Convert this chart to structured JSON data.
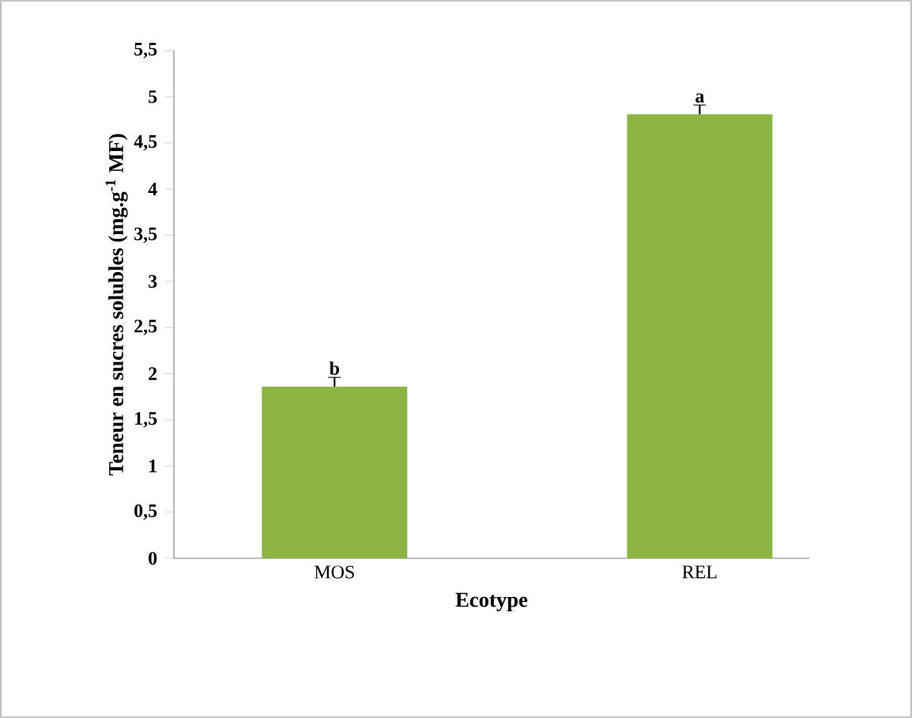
{
  "chart_data": {
    "type": "bar",
    "xlabel": "Ecotype",
    "ylabel": "Teneur en sucres solubles (mg.g$^{-1}$ MF)",
    "categories": [
      "MOS",
      "REL"
    ],
    "values": [
      1.86,
      4.81
    ],
    "errors": [
      0.1,
      0.1
    ],
    "color": "#8cb445",
    "ylim": [
      0,
      5.5
    ],
    "yticks": [
      0,
      {
        "value": 0.5,
        "label": "0,5"
      },
      1,
      {
        "value": 1.5,
        "label": "1,5"
      },
      2,
      {
        "value": 2.5,
        "label": "2,5"
      },
      3,
      {
        "value": 3.5,
        "label": "3,5"
      },
      4,
      {
        "value": 4.5,
        "label": "4,5"
      },
      5,
      {
        "value": 5.5,
        "label": "5,5"
      }
    ],
    "annotations": [
      {
        "text": "b",
        "x": "MOS",
        "y": 1.96
      },
      {
        "text": "a",
        "x": "REL",
        "y": 4.91
      }
    ],
    "grid": false
  }
}
